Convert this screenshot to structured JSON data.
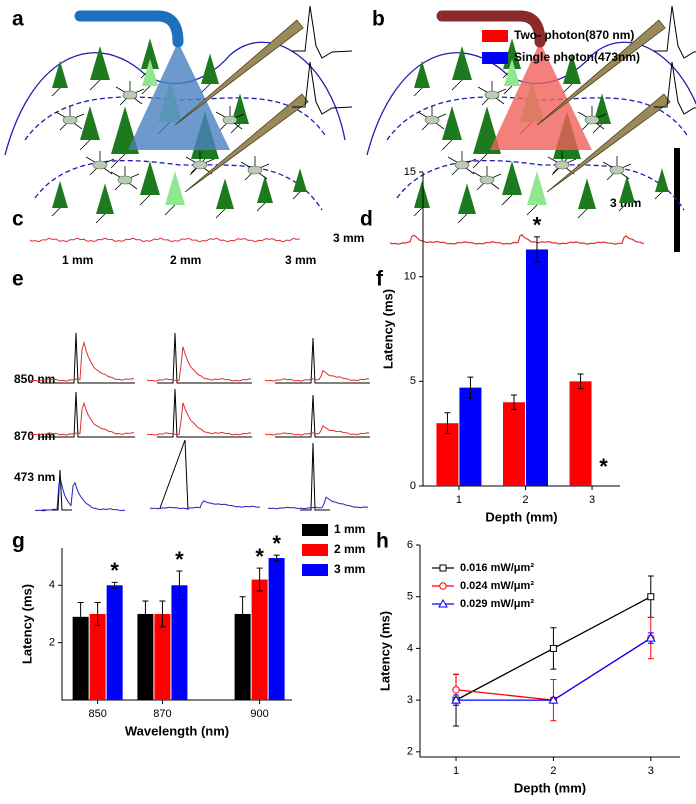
{
  "figure": {
    "panel_labels": [
      "a",
      "b",
      "c",
      "d",
      "e",
      "f",
      "g",
      "h"
    ],
    "scale_labels": [
      "3 mm",
      "3 mm"
    ],
    "e_rows": [
      "850 nm",
      "870 nm",
      "473 nm"
    ],
    "e_columns": [
      "1 mm",
      "2 mm",
      "3 mm"
    ]
  },
  "chart_data": [
    {
      "type": "bar",
      "xlabel": "Depth (mm)",
      "ylabel": "Latency (ms)",
      "x": [
        1,
        2,
        3
      ],
      "xlim": [
        0.46,
        3.42
      ],
      "xticks": [
        1,
        2,
        3
      ],
      "ylim": [
        0,
        15
      ],
      "yticks": [
        0,
        5,
        10,
        15
      ],
      "series": [
        {
          "name": "Two- photon(870 nm)",
          "color": "#ff0000",
          "values": [
            3,
            4,
            5
          ],
          "errors": [
            0.5,
            0.35,
            0.35
          ],
          "annotations": [
            null,
            null,
            null
          ]
        },
        {
          "name": "Single photon(473nm)",
          "color": "#0000ff",
          "values": [
            4.7,
            11.3,
            null
          ],
          "errors": [
            0.5,
            0.6,
            null
          ],
          "annotations": [
            null,
            "*",
            "*"
          ]
        }
      ]
    },
    {
      "type": "bar",
      "xlabel": "Wavelength (nm)",
      "ylabel": "Latency (ms)",
      "x": [
        850,
        870,
        900
      ],
      "xlim": [
        839,
        910
      ],
      "xticks": [
        850,
        870,
        900
      ],
      "ylim": [
        0,
        5.3
      ],
      "yticks": [
        2,
        4
      ],
      "series": [
        {
          "name": "1 mm",
          "color": "#000000",
          "values": [
            2.9,
            3,
            3
          ],
          "errors": [
            0.5,
            0.45,
            0.6
          ],
          "annotations": [
            null,
            null,
            null
          ]
        },
        {
          "name": "2 mm",
          "color": "#ff0000",
          "values": [
            3,
            3,
            4.2
          ],
          "errors": [
            0.4,
            0.45,
            0.4
          ],
          "annotations": [
            null,
            null,
            "*"
          ]
        },
        {
          "name": "3 mm",
          "color": "#0000ff",
          "values": [
            4,
            4,
            4.95
          ],
          "errors": [
            0.1,
            0.5,
            0.1
          ],
          "annotations": [
            "*",
            "*",
            "*"
          ]
        }
      ]
    },
    {
      "type": "line",
      "xlabel": "Depth (mm)",
      "ylabel": "Latency (ms)",
      "x": [
        1,
        2,
        3
      ],
      "xlim": [
        0.63,
        3.3
      ],
      "xticks": [
        1,
        2,
        3
      ],
      "ylim": [
        1.9,
        6
      ],
      "yticks": [
        2,
        3,
        4,
        5,
        6
      ],
      "series": [
        {
          "name": "0.016 mW/μm²",
          "color": "#000000",
          "marker": "square",
          "values": [
            3,
            4,
            5
          ],
          "errors": [
            0.5,
            0.4,
            0.4
          ]
        },
        {
          "name": "0.024 mW/μm²",
          "color": "#ff0000",
          "marker": "circle",
          "values": [
            3.2,
            3,
            4.2
          ],
          "errors": [
            0.3,
            0.4,
            0.4
          ]
        },
        {
          "name": "0.029 mW/μm²",
          "color": "#0000ff",
          "marker": "triangle",
          "values": [
            3,
            3,
            4.2
          ],
          "errors": [
            0.1,
            0.05,
            0.1
          ]
        }
      ]
    }
  ]
}
